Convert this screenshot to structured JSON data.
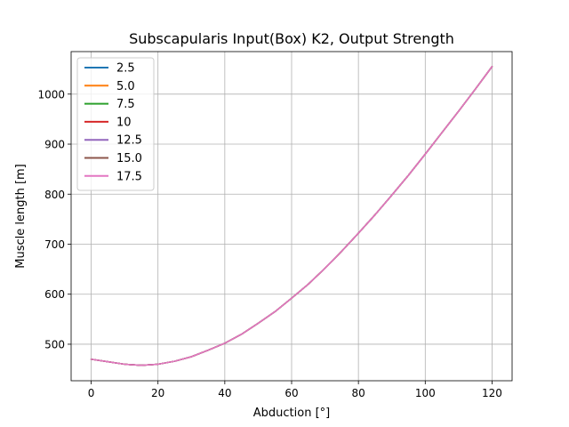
{
  "chart_data": {
    "type": "line",
    "title": "Subscapularis Input(Box) K2, Output Strength",
    "xlabel": "Abduction [°]",
    "ylabel": "Muscle length [m]",
    "xlim": [
      -6,
      126
    ],
    "ylim": [
      427,
      1085
    ],
    "xticks": [
      0,
      20,
      40,
      60,
      80,
      100,
      120
    ],
    "yticks": [
      500,
      600,
      700,
      800,
      900,
      1000
    ],
    "grid": true,
    "legend_position": "top-left",
    "x": [
      0,
      5,
      10,
      15,
      20,
      25,
      30,
      35,
      40,
      45,
      50,
      55,
      60,
      65,
      70,
      75,
      80,
      85,
      90,
      95,
      100,
      105,
      110,
      115,
      120
    ],
    "series": [
      {
        "name": "2.5",
        "color": "#1f77b4",
        "values": [
          470,
          465,
          460,
          458,
          460,
          466,
          475,
          488,
          502,
          520,
          542,
          565,
          592,
          620,
          652,
          686,
          722,
          759,
          798,
          838,
          880,
          923,
          966,
          1010,
          1055
        ]
      },
      {
        "name": "5.0",
        "color": "#ff7f0e",
        "values": [
          470,
          465,
          460,
          458,
          460,
          466,
          475,
          488,
          502,
          520,
          542,
          565,
          592,
          620,
          652,
          686,
          722,
          759,
          798,
          838,
          880,
          923,
          966,
          1010,
          1055
        ]
      },
      {
        "name": "7.5",
        "color": "#2ca02c",
        "values": [
          470,
          465,
          460,
          458,
          460,
          466,
          475,
          488,
          502,
          520,
          542,
          565,
          592,
          620,
          652,
          686,
          722,
          759,
          798,
          838,
          880,
          923,
          966,
          1010,
          1055
        ]
      },
      {
        "name": "10",
        "color": "#d62728",
        "values": [
          470,
          465,
          460,
          458,
          460,
          466,
          475,
          488,
          502,
          520,
          542,
          565,
          592,
          620,
          652,
          686,
          722,
          759,
          798,
          838,
          880,
          923,
          966,
          1010,
          1055
        ]
      },
      {
        "name": "12.5",
        "color": "#9467bd",
        "values": [
          470,
          465,
          460,
          458,
          460,
          466,
          475,
          488,
          502,
          520,
          542,
          565,
          592,
          620,
          652,
          686,
          722,
          759,
          798,
          838,
          880,
          923,
          966,
          1010,
          1055
        ]
      },
      {
        "name": "15.0",
        "color": "#8c564b",
        "values": [
          470,
          465,
          460,
          458,
          460,
          466,
          475,
          488,
          502,
          520,
          542,
          565,
          592,
          620,
          652,
          686,
          722,
          759,
          798,
          838,
          880,
          923,
          966,
          1010,
          1055
        ]
      },
      {
        "name": "17.5",
        "color": "#e377c2",
        "values": [
          470,
          465,
          460,
          458,
          460,
          466,
          475,
          488,
          502,
          520,
          542,
          565,
          592,
          620,
          652,
          686,
          722,
          759,
          798,
          838,
          880,
          923,
          966,
          1010,
          1055
        ]
      }
    ]
  }
}
